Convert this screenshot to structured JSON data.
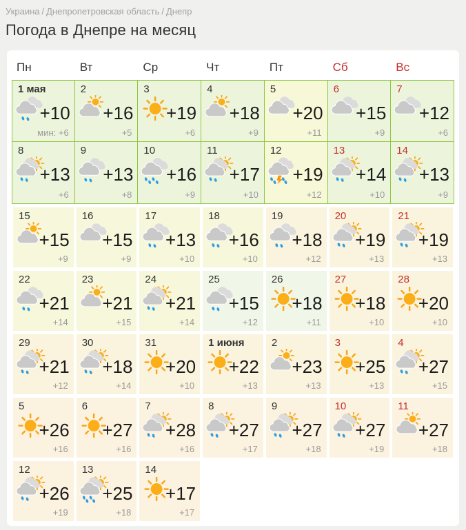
{
  "breadcrumb": {
    "items": [
      "Украина",
      "Днепропетровская область",
      "Днепр"
    ],
    "separator": "/"
  },
  "title": "Погода в Днепре на месяц",
  "weekdays": [
    {
      "label": "Пн",
      "weekend": false
    },
    {
      "label": "Вт",
      "weekend": false
    },
    {
      "label": "Ср",
      "weekend": false
    },
    {
      "label": "Чт",
      "weekend": false
    },
    {
      "label": "Пт",
      "weekend": false
    },
    {
      "label": "Сб",
      "weekend": true
    },
    {
      "label": "Вс",
      "weekend": true
    }
  ],
  "colors": {
    "page_bg": "#f0f0ee",
    "card_bg": "#ffffff",
    "cell_green": "#ecf5dc",
    "cell_yellow": "#f7f8d7",
    "cell_yellow2": "#f7f7dc",
    "cell_cream": "#faf4de",
    "cell_peach": "#fcf2e0",
    "cell_pale_green": "#f0f6e8",
    "border_green": "#8cc63f",
    "weekend_red": "#c5302c",
    "date_color": "#333333",
    "temp_color": "#1c1c1c",
    "min_color": "#999999",
    "breadcrumb_color": "#a2a2a2",
    "sun": "#fbae17",
    "sun_ray": "#f9a51a",
    "cloud_front": "#c9c9c9",
    "cloud_back": "#dbdbdb",
    "rain": "#2e9de2",
    "bolt": "#f7941d"
  },
  "calendar": {
    "rows": [
      {
        "bordered": true,
        "cells": [
          {
            "date": "1 мая",
            "bold": true,
            "weekend": false,
            "icon": "cloud-rain",
            "temp": "+10",
            "min": "мин: +6",
            "bg": "green"
          },
          {
            "date": "2",
            "bold": false,
            "weekend": false,
            "icon": "sun-cloud",
            "temp": "+16",
            "min": "+5",
            "bg": "green"
          },
          {
            "date": "3",
            "bold": false,
            "weekend": false,
            "icon": "sun",
            "temp": "+19",
            "min": "+6",
            "bg": "green"
          },
          {
            "date": "4",
            "bold": false,
            "weekend": false,
            "icon": "sun-cloud",
            "temp": "+18",
            "min": "+9",
            "bg": "green"
          },
          {
            "date": "5",
            "bold": false,
            "weekend": false,
            "icon": "cloud",
            "temp": "+20",
            "min": "+11",
            "bg": "yellow"
          },
          {
            "date": "6",
            "bold": false,
            "weekend": true,
            "icon": "cloud",
            "temp": "+15",
            "min": "+9",
            "bg": "green"
          },
          {
            "date": "7",
            "bold": false,
            "weekend": true,
            "icon": "cloud",
            "temp": "+12",
            "min": "+6",
            "bg": "green"
          }
        ]
      },
      {
        "bordered": true,
        "cells": [
          {
            "date": "8",
            "bold": false,
            "weekend": false,
            "icon": "sun-cloud-rain",
            "temp": "+13",
            "min": "+6",
            "bg": "green"
          },
          {
            "date": "9",
            "bold": false,
            "weekend": false,
            "icon": "cloud-rain",
            "temp": "+13",
            "min": "+8",
            "bg": "green"
          },
          {
            "date": "10",
            "bold": false,
            "weekend": false,
            "icon": "cloud-heavy-rain",
            "temp": "+16",
            "min": "+9",
            "bg": "green"
          },
          {
            "date": "11",
            "bold": false,
            "weekend": false,
            "icon": "sun-cloud-rain",
            "temp": "+17",
            "min": "+10",
            "bg": "green"
          },
          {
            "date": "12",
            "bold": false,
            "weekend": false,
            "icon": "thunderstorm",
            "temp": "+19",
            "min": "+12",
            "bg": "yellow"
          },
          {
            "date": "13",
            "bold": false,
            "weekend": true,
            "icon": "sun-cloud-rain",
            "temp": "+14",
            "min": "+10",
            "bg": "green"
          },
          {
            "date": "14",
            "bold": false,
            "weekend": true,
            "icon": "sun-cloud-rain",
            "temp": "+13",
            "min": "+9",
            "bg": "green"
          }
        ]
      },
      {
        "bordered": false,
        "cells": [
          {
            "date": "15",
            "bold": false,
            "weekend": false,
            "icon": "sun-cloud",
            "temp": "+15",
            "min": "+9",
            "bg": "yellow2"
          },
          {
            "date": "16",
            "bold": false,
            "weekend": false,
            "icon": "cloud",
            "temp": "+15",
            "min": "+9",
            "bg": "yellow2"
          },
          {
            "date": "17",
            "bold": false,
            "weekend": false,
            "icon": "cloud-rain",
            "temp": "+13",
            "min": "+10",
            "bg": "yellow2"
          },
          {
            "date": "18",
            "bold": false,
            "weekend": false,
            "icon": "cloud-rain",
            "temp": "+16",
            "min": "+10",
            "bg": "yellow2"
          },
          {
            "date": "19",
            "bold": false,
            "weekend": false,
            "icon": "cloud-rain",
            "temp": "+18",
            "min": "+12",
            "bg": "cream"
          },
          {
            "date": "20",
            "bold": false,
            "weekend": true,
            "icon": "sun-cloud-rain",
            "temp": "+19",
            "min": "+13",
            "bg": "cream"
          },
          {
            "date": "21",
            "bold": false,
            "weekend": true,
            "icon": "sun-cloud-rain",
            "temp": "+19",
            "min": "+13",
            "bg": "cream"
          }
        ]
      },
      {
        "bordered": false,
        "cells": [
          {
            "date": "22",
            "bold": false,
            "weekend": false,
            "icon": "cloud-rain",
            "temp": "+21",
            "min": "+14",
            "bg": "yellow2"
          },
          {
            "date": "23",
            "bold": false,
            "weekend": false,
            "icon": "sun-cloud",
            "temp": "+21",
            "min": "+15",
            "bg": "yellow2"
          },
          {
            "date": "24",
            "bold": false,
            "weekend": false,
            "icon": "sun-cloud-rain",
            "temp": "+21",
            "min": "+14",
            "bg": "yellow2"
          },
          {
            "date": "25",
            "bold": false,
            "weekend": false,
            "icon": "cloud-rain",
            "temp": "+15",
            "min": "+12",
            "bg": "paleGreen"
          },
          {
            "date": "26",
            "bold": false,
            "weekend": false,
            "icon": "sun",
            "temp": "+18",
            "min": "+11",
            "bg": "paleGreen"
          },
          {
            "date": "27",
            "bold": false,
            "weekend": true,
            "icon": "sun",
            "temp": "+18",
            "min": "+10",
            "bg": "cream"
          },
          {
            "date": "28",
            "bold": false,
            "weekend": true,
            "icon": "sun",
            "temp": "+20",
            "min": "+10",
            "bg": "cream"
          }
        ]
      },
      {
        "bordered": false,
        "cells": [
          {
            "date": "29",
            "bold": false,
            "weekend": false,
            "icon": "sun-cloud-rain",
            "temp": "+21",
            "min": "+12",
            "bg": "cream"
          },
          {
            "date": "30",
            "bold": false,
            "weekend": false,
            "icon": "sun-cloud-rain",
            "temp": "+18",
            "min": "+14",
            "bg": "cream"
          },
          {
            "date": "31",
            "bold": false,
            "weekend": false,
            "icon": "sun",
            "temp": "+20",
            "min": "+10",
            "bg": "cream"
          },
          {
            "date": "1 июня",
            "bold": true,
            "weekend": false,
            "icon": "sun",
            "temp": "+22",
            "min": "+13",
            "bg": "cream"
          },
          {
            "date": "2",
            "bold": false,
            "weekend": false,
            "icon": "sun-cloud",
            "temp": "+23",
            "min": "+13",
            "bg": "cream"
          },
          {
            "date": "3",
            "bold": false,
            "weekend": true,
            "icon": "sun",
            "temp": "+25",
            "min": "+13",
            "bg": "cream"
          },
          {
            "date": "4",
            "bold": false,
            "weekend": true,
            "icon": "sun-cloud-rain",
            "temp": "+27",
            "min": "+15",
            "bg": "cream"
          }
        ]
      },
      {
        "bordered": false,
        "cells": [
          {
            "date": "5",
            "bold": false,
            "weekend": false,
            "icon": "sun",
            "temp": "+26",
            "min": "+16",
            "bg": "peach"
          },
          {
            "date": "6",
            "bold": false,
            "weekend": false,
            "icon": "sun",
            "temp": "+27",
            "min": "+16",
            "bg": "peach"
          },
          {
            "date": "7",
            "bold": false,
            "weekend": false,
            "icon": "sun-cloud-rain",
            "temp": "+28",
            "min": "+16",
            "bg": "peach"
          },
          {
            "date": "8",
            "bold": false,
            "weekend": false,
            "icon": "sun-cloud-rain",
            "temp": "+27",
            "min": "+17",
            "bg": "peach"
          },
          {
            "date": "9",
            "bold": false,
            "weekend": false,
            "icon": "sun-cloud-rain",
            "temp": "+27",
            "min": "+18",
            "bg": "peach"
          },
          {
            "date": "10",
            "bold": false,
            "weekend": true,
            "icon": "sun-cloud-rain",
            "temp": "+27",
            "min": "+19",
            "bg": "peach"
          },
          {
            "date": "11",
            "bold": false,
            "weekend": true,
            "icon": "sun-cloud",
            "temp": "+27",
            "min": "+18",
            "bg": "peach"
          }
        ]
      },
      {
        "bordered": false,
        "cells": [
          {
            "date": "12",
            "bold": false,
            "weekend": false,
            "icon": "sun-cloud-rain",
            "temp": "+26",
            "min": "+19",
            "bg": "peach"
          },
          {
            "date": "13",
            "bold": false,
            "weekend": false,
            "icon": "sun-cloud-heavy-rain",
            "temp": "+25",
            "min": "+18",
            "bg": "peach"
          },
          {
            "date": "14",
            "bold": false,
            "weekend": false,
            "icon": "sun",
            "temp": "+17",
            "min": "+17",
            "bg": "peach"
          }
        ]
      }
    ]
  }
}
